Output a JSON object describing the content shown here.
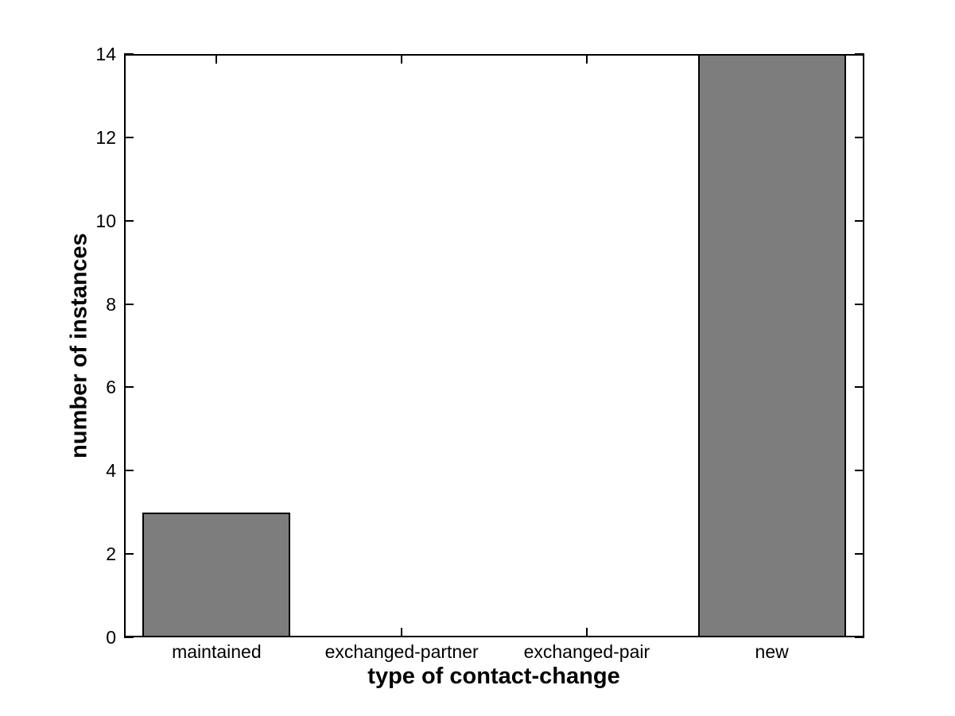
{
  "chart_data": {
    "type": "bar",
    "categories": [
      "maintained",
      "exchanged-partner",
      "exchanged-pair",
      "new"
    ],
    "values": [
      3,
      0,
      0,
      14
    ],
    "title": "",
    "xlabel": "type of contact-change",
    "ylabel": "number of instances",
    "ylim": [
      0,
      14
    ],
    "yticks": [
      0,
      2,
      4,
      6,
      8,
      10,
      12,
      14
    ],
    "bar_color": "#7d7d7d",
    "bar_edge_color": "#000000",
    "axis_color": "#000000",
    "background_color": "#ffffff",
    "bar_rel_width": 0.8,
    "grid": "off",
    "legend": "none",
    "tick_direction": "in"
  }
}
